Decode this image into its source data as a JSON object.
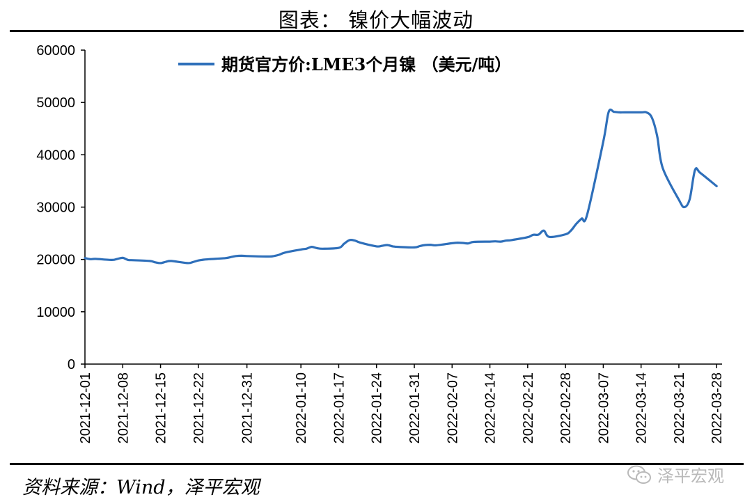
{
  "header": {
    "title": "图表：  镍价大幅波动"
  },
  "footer": {
    "source": "资料来源：Wind，泽平宏观",
    "watermark": "泽平宏观",
    "watermark_icon": "wechat-icon"
  },
  "chart_data": {
    "type": "line",
    "title": "",
    "xlabel": "",
    "ylabel": "",
    "ylim": [
      0,
      60000
    ],
    "yticks": [
      0,
      10000,
      20000,
      30000,
      40000,
      50000,
      60000
    ],
    "xlim": [
      "2021-12-01",
      "2022-03-29"
    ],
    "xtick_labels": [
      "2021-12-01",
      "2021-12-08",
      "2021-12-15",
      "2021-12-22",
      "2021-12-31",
      "2022-01-10",
      "2022-01-17",
      "2022-01-24",
      "2022-01-31",
      "2022-02-07",
      "2022-02-14",
      "2022-02-21",
      "2022-02-28",
      "2022-03-07",
      "2022-03-14",
      "2022-03-21",
      "2022-03-28"
    ],
    "legend_position": "top",
    "grid": false,
    "series": [
      {
        "name": "期货官方价:LME3个月镍 （美元/吨）",
        "color": "#2e6fba",
        "points": [
          [
            "2021-12-01",
            20250
          ],
          [
            "2021-12-02",
            20050
          ],
          [
            "2021-12-03",
            20100
          ],
          [
            "2021-12-06",
            19900
          ],
          [
            "2021-12-07",
            20100
          ],
          [
            "2021-12-08",
            20300
          ],
          [
            "2021-12-09",
            19900
          ],
          [
            "2021-12-10",
            19850
          ],
          [
            "2021-12-13",
            19700
          ],
          [
            "2021-12-14",
            19450
          ],
          [
            "2021-12-15",
            19300
          ],
          [
            "2021-12-16",
            19550
          ],
          [
            "2021-12-17",
            19700
          ],
          [
            "2021-12-20",
            19300
          ],
          [
            "2021-12-21",
            19500
          ],
          [
            "2021-12-22",
            19800
          ],
          [
            "2021-12-23",
            19950
          ],
          [
            "2021-12-24",
            20050
          ],
          [
            "2021-12-27",
            20250
          ],
          [
            "2021-12-28",
            20450
          ],
          [
            "2021-12-29",
            20650
          ],
          [
            "2021-12-30",
            20700
          ],
          [
            "2021-12-31",
            20650
          ],
          [
            "2022-01-04",
            20550
          ],
          [
            "2022-01-05",
            20650
          ],
          [
            "2022-01-06",
            20900
          ],
          [
            "2022-01-07",
            21300
          ],
          [
            "2022-01-10",
            21900
          ],
          [
            "2022-01-11",
            22050
          ],
          [
            "2022-01-12",
            22400
          ],
          [
            "2022-01-13",
            22150
          ],
          [
            "2022-01-14",
            22050
          ],
          [
            "2022-01-17",
            22200
          ],
          [
            "2022-01-18",
            23000
          ],
          [
            "2022-01-19",
            23700
          ],
          [
            "2022-01-20",
            23600
          ],
          [
            "2022-01-21",
            23200
          ],
          [
            "2022-01-24",
            22500
          ],
          [
            "2022-01-25",
            22600
          ],
          [
            "2022-01-26",
            22750
          ],
          [
            "2022-01-27",
            22500
          ],
          [
            "2022-01-28",
            22400
          ],
          [
            "2022-01-31",
            22300
          ],
          [
            "2022-02-01",
            22550
          ],
          [
            "2022-02-02",
            22750
          ],
          [
            "2022-02-03",
            22800
          ],
          [
            "2022-02-04",
            22700
          ],
          [
            "2022-02-07",
            23100
          ],
          [
            "2022-02-08",
            23200
          ],
          [
            "2022-02-09",
            23150
          ],
          [
            "2022-02-10",
            23050
          ],
          [
            "2022-02-11",
            23350
          ],
          [
            "2022-02-14",
            23400
          ],
          [
            "2022-02-15",
            23450
          ],
          [
            "2022-02-16",
            23400
          ],
          [
            "2022-02-17",
            23600
          ],
          [
            "2022-02-18",
            23700
          ],
          [
            "2022-02-21",
            24250
          ],
          [
            "2022-02-22",
            24700
          ],
          [
            "2022-02-23",
            24750
          ],
          [
            "2022-02-24",
            25500
          ],
          [
            "2022-02-25",
            24300
          ],
          [
            "2022-02-28",
            24800
          ],
          [
            "2022-03-01",
            25500
          ],
          [
            "2022-03-02",
            26800
          ],
          [
            "2022-03-03",
            27800
          ],
          [
            "2022-03-04",
            28500
          ],
          [
            "2022-03-07",
            42500
          ],
          [
            "2022-03-08",
            48200
          ],
          [
            "2022-03-09",
            48200
          ],
          [
            "2022-03-10",
            48100
          ],
          [
            "2022-03-11",
            48100
          ],
          [
            "2022-03-14",
            48100
          ],
          [
            "2022-03-15",
            48100
          ],
          [
            "2022-03-16",
            47100
          ],
          [
            "2022-03-17",
            43500
          ],
          [
            "2022-03-18",
            37500
          ],
          [
            "2022-03-21",
            31400
          ],
          [
            "2022-03-22",
            30000
          ],
          [
            "2022-03-23",
            31500
          ],
          [
            "2022-03-24",
            37100
          ],
          [
            "2022-03-25",
            36500
          ],
          [
            "2022-03-28",
            34000
          ]
        ]
      }
    ]
  }
}
